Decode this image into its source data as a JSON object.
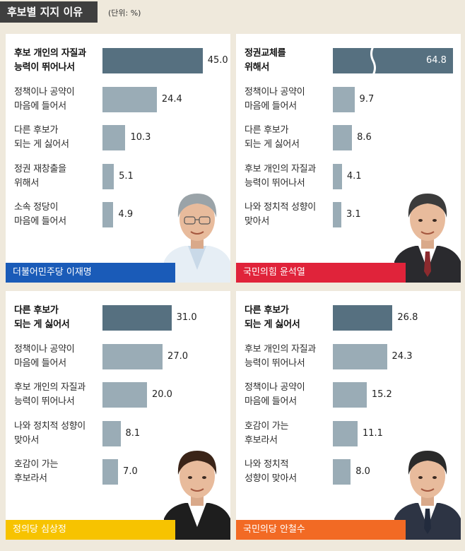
{
  "header": {
    "title": "후보별 지지 이유",
    "unit": "(단위: %)"
  },
  "colors": {
    "bar_top": "#567080",
    "bar": "#9aacb6",
    "dem_blue": "#1a5bb8",
    "ppp_red": "#e0233a",
    "justice_yellow": "#f7c300",
    "peoples_orange": "#f26a24"
  },
  "panels": [
    {
      "candidate": "더불어민주당 이재명",
      "footer_color": "#1a5bb8",
      "portrait_icon": "candidate-portrait",
      "items": [
        {
          "label": "후보 개인의 자질과\n능력이 뛰어나서",
          "value": "45.0"
        },
        {
          "label": "정책이나 공약이\n마음에 들어서",
          "value": "24.4"
        },
        {
          "label": "다른 후보가\n되는 게 싫어서",
          "value": "10.3"
        },
        {
          "label": "정권 재창출을\n위해서",
          "value": "5.1"
        },
        {
          "label": "소속 정당이\n마음에 들어서",
          "value": "4.9"
        }
      ]
    },
    {
      "candidate": "국민의힘 윤석열",
      "footer_color": "#e0233a",
      "portrait_icon": "candidate-portrait",
      "axis_break": true,
      "items": [
        {
          "label": "정권교체를\n위해서",
          "value": "64.8"
        },
        {
          "label": "정책이나 공약이\n마음에 들어서",
          "value": "9.7"
        },
        {
          "label": "다른 후보가\n되는 게 싫어서",
          "value": "8.6"
        },
        {
          "label": "후보 개인의 자질과\n능력이 뛰어나서",
          "value": "4.1"
        },
        {
          "label": "나와 정치적 성향이\n맞아서",
          "value": "3.1"
        }
      ]
    },
    {
      "candidate": "정의당 심상정",
      "footer_color": "#f7c300",
      "portrait_icon": "candidate-portrait",
      "items": [
        {
          "label": "다른 후보가\n되는 게 싫어서",
          "value": "31.0"
        },
        {
          "label": "정책이나 공약이\n마음에 들어서",
          "value": "27.0"
        },
        {
          "label": "후보 개인의 자질과\n능력이 뛰어나서",
          "value": "20.0"
        },
        {
          "label": "나와 정치적 성향이\n맞아서",
          "value": "8.1"
        },
        {
          "label": "호감이 가는\n후보라서",
          "value": "7.0"
        }
      ]
    },
    {
      "candidate": "국민의당 안철수",
      "footer_color": "#f26a24",
      "portrait_icon": "candidate-portrait",
      "items": [
        {
          "label": "다른 후보가\n되는 게 싫어서",
          "value": "26.8"
        },
        {
          "label": "후보 개인의 자질과\n능력이 뛰어나서",
          "value": "24.3"
        },
        {
          "label": "정책이나 공약이\n마음에 들어서",
          "value": "15.2"
        },
        {
          "label": "호감이 가는\n후보라서",
          "value": "11.1"
        },
        {
          "label": "나와 정치적\n성향이 맞아서",
          "value": "8.0"
        }
      ]
    }
  ],
  "chart_data": [
    {
      "type": "bar",
      "categories": [
        "후보 개인의 자질과 능력이 뛰어나서",
        "정책이나 공약이 마음에 들어서",
        "다른 후보가 되는 게 싫어서",
        "정권 재창출을 위해서",
        "소속 정당이 마음에 들어서"
      ],
      "values": [
        45.0,
        24.4,
        10.3,
        5.1,
        4.9
      ],
      "title": "더불어민주당 이재명"
    },
    {
      "type": "bar",
      "categories": [
        "정권교체를 위해서",
        "정책이나 공약이 마음에 들어서",
        "다른 후보가 되는 게 싫어서",
        "후보 개인의 자질과 능력이 뛰어나서",
        "나와 정치적 성향이 맞아서"
      ],
      "values": [
        64.8,
        9.7,
        8.6,
        4.1,
        3.1
      ],
      "title": "국민의힘 윤석열"
    },
    {
      "type": "bar",
      "categories": [
        "다른 후보가 되는 게 싫어서",
        "정책이나 공약이 마음에 들어서",
        "후보 개인의 자질과 능력이 뛰어나서",
        "나와 정치적 성향이 맞아서",
        "호감이 가는 후보라서"
      ],
      "values": [
        31.0,
        27.0,
        20.0,
        8.1,
        7.0
      ],
      "title": "정의당 심상정"
    },
    {
      "type": "bar",
      "categories": [
        "다른 후보가 되는 게 싫어서",
        "후보 개인의 자질과 능력이 뛰어나서",
        "정책이나 공약이 마음에 들어서",
        "호감이 가는 후보라서",
        "나와 정치적 성향이 맞아서"
      ],
      "values": [
        26.8,
        24.3,
        15.2,
        11.1,
        8.0
      ],
      "title": "국민의당 안철수"
    }
  ]
}
